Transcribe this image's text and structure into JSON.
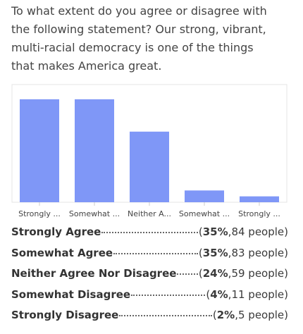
{
  "question": "To what extent do you agree or disagree with the following statement? Our strong, vibrant, multi-racial democracy is one of the things that makes America great.",
  "chart_data": {
    "type": "bar",
    "categories": [
      "Strongly ...",
      "Somewhat ...",
      "Neither A...",
      "Somewhat ...",
      "Strongly ..."
    ],
    "values": [
      35,
      35,
      24,
      4,
      2
    ],
    "color": "#7f97f7",
    "ylim": [
      0,
      40
    ]
  },
  "punctuation": {
    "open": "(",
    "sep": ", ",
    "close": ")"
  },
  "rows": [
    {
      "label": "Strongly Agree",
      "percent": "35%",
      "people": "84 people"
    },
    {
      "label": "Somewhat Agree",
      "percent": "35%",
      "people": "83 people"
    },
    {
      "label": "Neither Agree Nor Disagree",
      "percent": "24%",
      "people": "59 people"
    },
    {
      "label": "Somewhat Disagree",
      "percent": "4%",
      "people": "11 people"
    },
    {
      "label": "Strongly Disagree",
      "percent": "2%",
      "people": "5 people"
    }
  ]
}
